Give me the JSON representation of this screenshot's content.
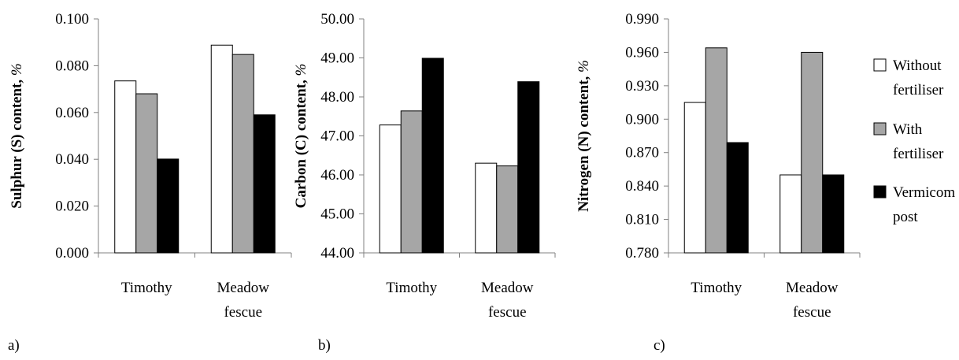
{
  "chart_data": [
    {
      "type": "bar",
      "panel_label": "a)",
      "ylabel": "Sulphur (S) content,",
      "ylabel_unit": "%",
      "categories": [
        [
          "Timothy"
        ],
        [
          "Meadow",
          "fescue"
        ]
      ],
      "ylim": [
        0,
        0.1
      ],
      "ytick_step": 0.02,
      "yticks": [
        "0.000",
        "0.020",
        "0.040",
        "0.060",
        "0.080",
        "0.100"
      ],
      "series": [
        {
          "name": "Without fertiliser",
          "values": [
            0.0735,
            0.0888
          ]
        },
        {
          "name": "With fertiliser",
          "values": [
            0.068,
            0.0848
          ]
        },
        {
          "name": "Vermicompost",
          "values": [
            0.0401,
            0.059
          ]
        }
      ]
    },
    {
      "type": "bar",
      "panel_label": "b)",
      "ylabel": "Carbon (C) content,",
      "ylabel_unit": "%",
      "categories": [
        [
          "Timothy"
        ],
        [
          "Meadow",
          "fescue"
        ]
      ],
      "ylim": [
        44,
        50
      ],
      "ytick_step": 1,
      "yticks": [
        "44.00",
        "45.00",
        "46.00",
        "47.00",
        "48.00",
        "49.00",
        "50.00"
      ],
      "series": [
        {
          "name": "Without fertiliser",
          "values": [
            47.28,
            46.3
          ]
        },
        {
          "name": "With fertiliser",
          "values": [
            47.64,
            46.23
          ]
        },
        {
          "name": "Vermicompost",
          "values": [
            48.99,
            48.39
          ]
        }
      ]
    },
    {
      "type": "bar",
      "panel_label": "c)",
      "ylabel": "Nitrogen (N) content,",
      "ylabel_unit": "%",
      "categories": [
        [
          "Timothy"
        ],
        [
          "Meadow",
          "fescue"
        ]
      ],
      "ylim": [
        0.78,
        0.99
      ],
      "ytick_step": 0.03,
      "yticks": [
        "0.780",
        "0.810",
        "0.840",
        "0.870",
        "0.900",
        "0.930",
        "0.960",
        "0.990"
      ],
      "series": [
        {
          "name": "Without fertiliser",
          "values": [
            0.915,
            0.85
          ]
        },
        {
          "name": "With fertiliser",
          "values": [
            0.964,
            0.96
          ]
        },
        {
          "name": "Vermicompost",
          "values": [
            0.879,
            0.85
          ]
        }
      ]
    }
  ],
  "legend": {
    "position": "right",
    "items": [
      {
        "lines": [
          "Without",
          "fertiliser"
        ],
        "color": "#ffffff"
      },
      {
        "lines": [
          "With",
          "fertiliser"
        ],
        "color": "#a6a6a6"
      },
      {
        "lines": [
          "Vermicom",
          "post"
        ],
        "color": "#000000"
      }
    ]
  },
  "colors": {
    "without": "#ffffff",
    "with": "#a6a6a6",
    "vermicompost": "#000000",
    "axis": "#808080"
  }
}
